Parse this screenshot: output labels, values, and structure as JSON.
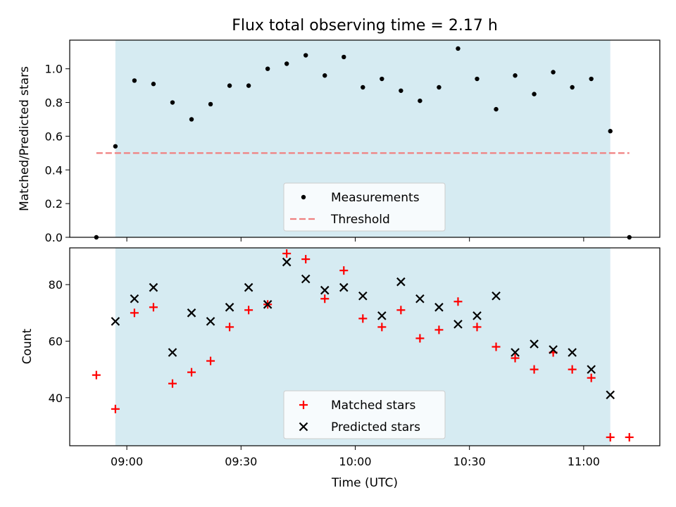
{
  "chart_data": [
    {
      "type": "scatter",
      "title": "Flux total observing time = 2.17 h",
      "ylabel": "Matched/Predicted stars",
      "xlabel": "",
      "ylim": [
        0,
        1.17
      ],
      "yticks": [
        "0.0",
        "0.2",
        "0.4",
        "0.6",
        "0.8",
        "1.0"
      ],
      "x_units": "minutes since 08:00 UTC",
      "observing_window": {
        "start": "08:57",
        "end": "11:07"
      },
      "series": [
        {
          "name": "Measurements",
          "marker": "dot",
          "color": "#000000",
          "points": [
            [
              "08:52",
              0.0
            ],
            [
              "08:57",
              0.54
            ],
            [
              "09:02",
              0.93
            ],
            [
              "09:07",
              0.91
            ],
            [
              "09:12",
              0.8
            ],
            [
              "09:17",
              0.7
            ],
            [
              "09:22",
              0.79
            ],
            [
              "09:27",
              0.9
            ],
            [
              "09:32",
              0.9
            ],
            [
              "09:37",
              1.0
            ],
            [
              "09:42",
              1.03
            ],
            [
              "09:47",
              1.08
            ],
            [
              "09:52",
              0.96
            ],
            [
              "09:57",
              1.07
            ],
            [
              "10:02",
              0.89
            ],
            [
              "10:07",
              0.94
            ],
            [
              "10:12",
              0.87
            ],
            [
              "10:17",
              0.81
            ],
            [
              "10:22",
              0.89
            ],
            [
              "10:27",
              1.12
            ],
            [
              "10:32",
              0.94
            ],
            [
              "10:37",
              0.76
            ],
            [
              "10:42",
              0.96
            ],
            [
              "10:47",
              0.85
            ],
            [
              "10:52",
              0.98
            ],
            [
              "10:57",
              0.89
            ],
            [
              "11:02",
              0.94
            ],
            [
              "11:07",
              0.63
            ],
            [
              "11:12",
              0.0
            ]
          ]
        },
        {
          "name": "Threshold",
          "marker": "dashed-line",
          "color": "#f08080",
          "value": 0.5,
          "x_range": [
            "08:52",
            "11:12"
          ]
        }
      ],
      "legend": "lower-center"
    },
    {
      "type": "scatter",
      "title": "",
      "ylabel": "Count",
      "xlabel": "Time (UTC)",
      "ylim": [
        23,
        93
      ],
      "yticks": [
        "40",
        "60",
        "80"
      ],
      "xticks": [
        "09:00",
        "09:30",
        "10:00",
        "10:30",
        "11:00"
      ],
      "series": [
        {
          "name": "Matched stars",
          "marker": "plus",
          "color": "#ff0000",
          "points": [
            [
              "08:52",
              48
            ],
            [
              "08:57",
              36
            ],
            [
              "09:02",
              70
            ],
            [
              "09:07",
              72
            ],
            [
              "09:12",
              45
            ],
            [
              "09:17",
              49
            ],
            [
              "09:22",
              53
            ],
            [
              "09:27",
              65
            ],
            [
              "09:32",
              71
            ],
            [
              "09:37",
              73
            ],
            [
              "09:42",
              91
            ],
            [
              "09:47",
              89
            ],
            [
              "09:52",
              75
            ],
            [
              "09:57",
              85
            ],
            [
              "10:02",
              68
            ],
            [
              "10:07",
              65
            ],
            [
              "10:12",
              71
            ],
            [
              "10:17",
              61
            ],
            [
              "10:22",
              64
            ],
            [
              "10:27",
              74
            ],
            [
              "10:32",
              65
            ],
            [
              "10:37",
              58
            ],
            [
              "10:42",
              54
            ],
            [
              "10:47",
              50
            ],
            [
              "10:52",
              56
            ],
            [
              "10:57",
              50
            ],
            [
              "11:02",
              47
            ],
            [
              "11:07",
              26
            ],
            [
              "11:12",
              26
            ]
          ]
        },
        {
          "name": "Predicted stars",
          "marker": "x",
          "color": "#000000",
          "points": [
            [
              "08:57",
              67
            ],
            [
              "09:02",
              75
            ],
            [
              "09:07",
              79
            ],
            [
              "09:12",
              56
            ],
            [
              "09:17",
              70
            ],
            [
              "09:22",
              67
            ],
            [
              "09:27",
              72
            ],
            [
              "09:32",
              79
            ],
            [
              "09:37",
              73
            ],
            [
              "09:42",
              88
            ],
            [
              "09:47",
              82
            ],
            [
              "09:52",
              78
            ],
            [
              "09:57",
              79
            ],
            [
              "10:02",
              76
            ],
            [
              "10:07",
              69
            ],
            [
              "10:12",
              81
            ],
            [
              "10:17",
              75
            ],
            [
              "10:22",
              72
            ],
            [
              "10:27",
              66
            ],
            [
              "10:32",
              69
            ],
            [
              "10:37",
              76
            ],
            [
              "10:42",
              56
            ],
            [
              "10:47",
              59
            ],
            [
              "10:52",
              57
            ],
            [
              "10:57",
              56
            ],
            [
              "11:02",
              50
            ],
            [
              "11:07",
              41
            ]
          ]
        }
      ],
      "legend": "lower-center"
    }
  ],
  "colors": {
    "window_fill": "#add8e6",
    "threshold": "#f08080",
    "matched": "#ff0000",
    "predicted": "#000000"
  }
}
